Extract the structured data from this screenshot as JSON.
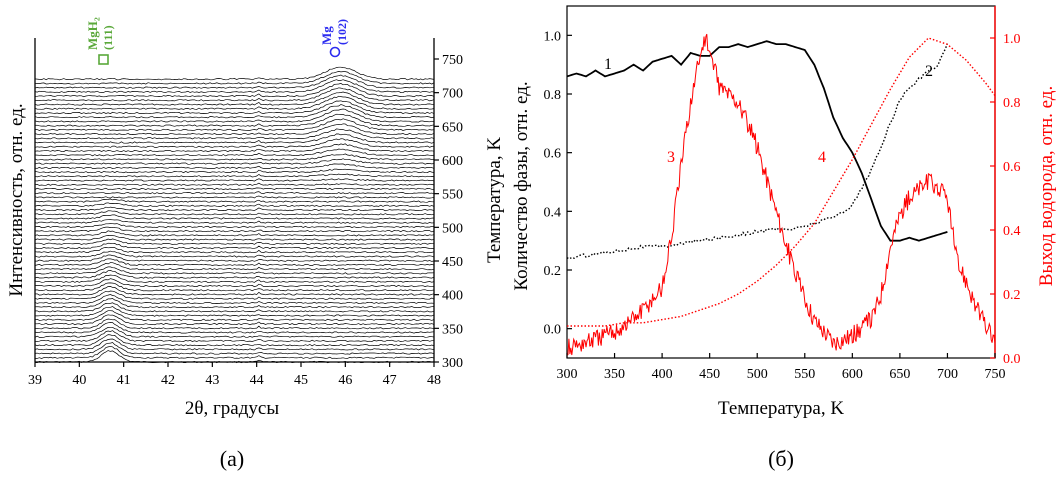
{
  "colors": {
    "axis": "#000000",
    "red": "#ff0000",
    "green": "#5aa83a",
    "blue": "#2d2df0"
  },
  "chart_data": [
    {
      "type": "line",
      "panel_label": "(а)",
      "xlabel": "2θ, градусы",
      "ylabel_left": "Интенсивность, отн. ед.",
      "ylabel_right": "Температура, K",
      "xlim": [
        39,
        48
      ],
      "xticks": [
        "39",
        "40",
        "41",
        "42",
        "43",
        "44",
        "45",
        "46",
        "47",
        "48"
      ],
      "temperature_range": [
        300,
        750
      ],
      "right_ticks": [
        "300",
        "350",
        "400",
        "450",
        "500",
        "550",
        "600",
        "650",
        "700",
        "750"
      ],
      "scan_count": 68,
      "peaks": [
        {
          "label": "MgH₂",
          "hkl": "(111)",
          "position_2theta": 40.7,
          "marker": "square",
          "color": "#5aa83a",
          "exists_up_to_K": 540
        },
        {
          "label": "Mg",
          "hkl": "(102)",
          "position_2theta": 45.9,
          "marker": "circle",
          "color": "#2d2df0",
          "appears_from_K": 560
        }
      ]
    },
    {
      "type": "line",
      "panel_label": "(б)",
      "xlabel": "Температура, K",
      "ylabel_left": "Количество фазы, отн. ед.",
      "ylabel_right": "Выход водорода, отн. ед.",
      "xlim": [
        300,
        750
      ],
      "ylim_left": [
        -0.1,
        1.1
      ],
      "ylim_right": [
        0.0,
        1.1
      ],
      "xticks": [
        "300",
        "350",
        "400",
        "450",
        "500",
        "550",
        "600",
        "650",
        "700",
        "750"
      ],
      "yticks_left": [
        "0.0",
        "0.2",
        "0.4",
        "0.6",
        "0.8",
        "1.0"
      ],
      "yticks_right": [
        "0.0",
        "0.2",
        "0.4",
        "0.6",
        "0.8",
        "1.0"
      ],
      "series": [
        {
          "name": "1",
          "axis": "left",
          "color": "#000000",
          "style": "solid",
          "x": [
            300,
            310,
            320,
            330,
            340,
            350,
            360,
            370,
            380,
            390,
            400,
            410,
            420,
            430,
            440,
            450,
            460,
            470,
            480,
            490,
            500,
            510,
            520,
            530,
            540,
            550,
            560,
            570,
            580,
            590,
            600,
            610,
            620,
            630,
            640,
            650,
            660,
            670,
            680,
            690,
            700
          ],
          "y": [
            0.86,
            0.87,
            0.86,
            0.88,
            0.86,
            0.87,
            0.88,
            0.9,
            0.88,
            0.91,
            0.92,
            0.93,
            0.9,
            0.94,
            0.93,
            0.93,
            0.96,
            0.96,
            0.97,
            0.96,
            0.97,
            0.98,
            0.97,
            0.97,
            0.96,
            0.95,
            0.9,
            0.82,
            0.72,
            0.65,
            0.6,
            0.53,
            0.44,
            0.35,
            0.3,
            0.3,
            0.31,
            0.3,
            0.31,
            0.32,
            0.33
          ]
        },
        {
          "name": "2",
          "axis": "left",
          "color": "#000000",
          "style": "dotted",
          "x": [
            300,
            320,
            340,
            360,
            380,
            400,
            420,
            440,
            460,
            480,
            500,
            520,
            540,
            560,
            580,
            600,
            620,
            640,
            650,
            660,
            670,
            680,
            690,
            700
          ],
          "y": [
            0.24,
            0.25,
            0.26,
            0.27,
            0.28,
            0.28,
            0.29,
            0.3,
            0.31,
            0.32,
            0.33,
            0.34,
            0.34,
            0.36,
            0.38,
            0.42,
            0.54,
            0.7,
            0.78,
            0.82,
            0.85,
            0.88,
            0.9,
            0.97
          ]
        },
        {
          "name": "3",
          "axis": "right",
          "color": "#ff0000",
          "style": "solid",
          "x": [
            300,
            320,
            340,
            360,
            380,
            400,
            410,
            420,
            430,
            440,
            445,
            450,
            455,
            460,
            480,
            500,
            520,
            540,
            560,
            580,
            600,
            620,
            630,
            640,
            650,
            660,
            670,
            680,
            690,
            700,
            710,
            720,
            730,
            740,
            750
          ],
          "y": [
            0.03,
            0.05,
            0.07,
            0.1,
            0.15,
            0.22,
            0.38,
            0.6,
            0.8,
            0.95,
            1.0,
            0.96,
            0.9,
            0.85,
            0.8,
            0.66,
            0.46,
            0.26,
            0.12,
            0.05,
            0.07,
            0.12,
            0.2,
            0.35,
            0.45,
            0.5,
            0.53,
            0.55,
            0.53,
            0.5,
            0.3,
            0.24,
            0.16,
            0.1,
            0.05
          ]
        },
        {
          "name": "4",
          "axis": "right",
          "color": "#ff0000",
          "style": "dotted",
          "x": [
            300,
            320,
            340,
            360,
            380,
            400,
            420,
            440,
            460,
            480,
            500,
            520,
            540,
            560,
            580,
            600,
            620,
            640,
            660,
            680,
            700,
            720,
            740,
            750
          ],
          "y": [
            0.1,
            0.1,
            0.1,
            0.11,
            0.11,
            0.12,
            0.13,
            0.15,
            0.17,
            0.2,
            0.24,
            0.29,
            0.35,
            0.42,
            0.52,
            0.62,
            0.73,
            0.84,
            0.94,
            1.0,
            0.98,
            0.93,
            0.86,
            0.82
          ]
        }
      ]
    }
  ]
}
